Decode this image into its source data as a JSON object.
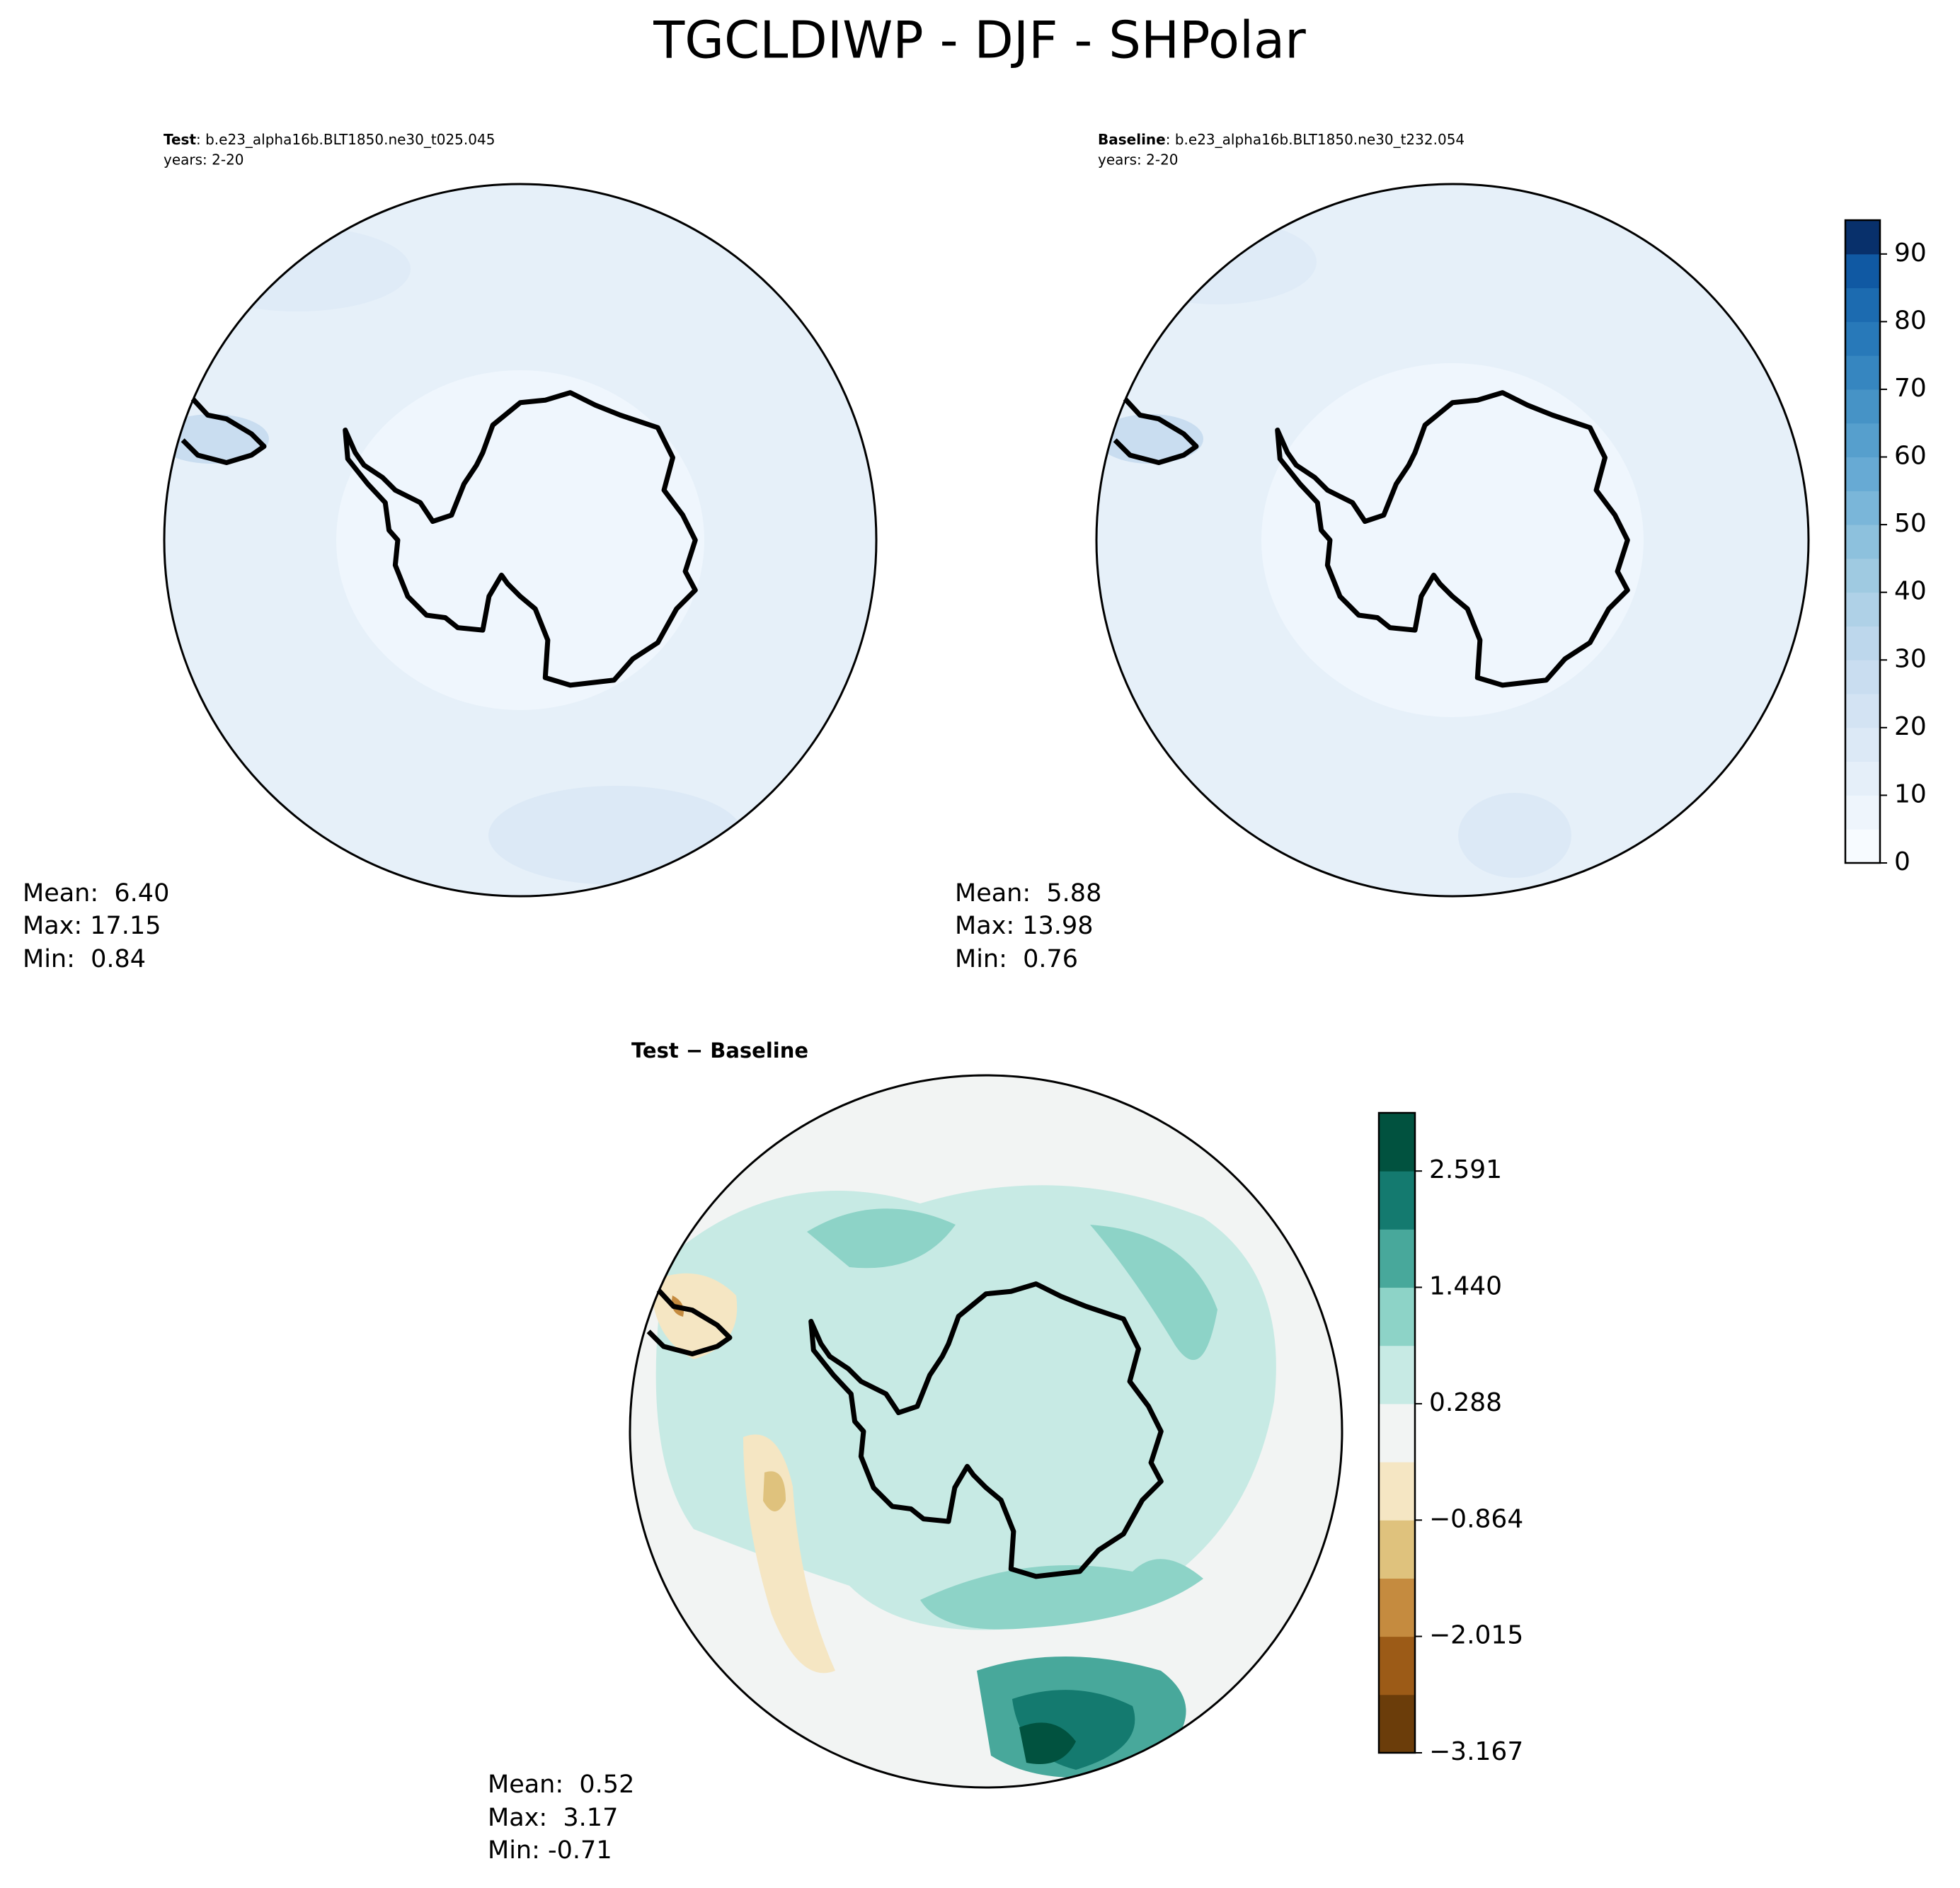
{
  "title": "TGCLDIWP - DJF - SHPolar",
  "panels": [
    {
      "label": "Test",
      "case": ": b.e23_alpha16b.BLT1850.ne30_t025.045",
      "years": "years: 2-20",
      "stats": [
        "Mean:  6.40",
        "Max: 17.15",
        "Min:  0.84"
      ]
    },
    {
      "label": "Baseline",
      "case": ": b.e23_alpha16b.BLT1850.ne30_t232.054",
      "years": "years: 2-20",
      "stats": [
        "Mean:  5.88",
        "Max: 13.98",
        "Min:  0.76"
      ]
    },
    {
      "label": "Test − Baseline",
      "stats": [
        "Mean:  0.52",
        "Max:  3.17",
        "Min: -0.71"
      ]
    }
  ],
  "colorbars": [
    {
      "lim": [
        0,
        95
      ],
      "ticks": [
        0,
        10,
        20,
        30,
        40,
        50,
        60,
        70,
        80,
        90
      ],
      "colors": [
        "#f7fbff",
        "#eef5fc",
        "#e5eff9",
        "#dce9f6",
        "#d3e3f3",
        "#c9ddf0",
        "#bdd7ec",
        "#afd1e7",
        "#9fcae1",
        "#8dc1dd",
        "#7ab6d9",
        "#67aad4",
        "#569fcd",
        "#4693c6",
        "#3686c0",
        "#2879b9",
        "#1c6bb0",
        "#1059a3",
        "#08306b"
      ]
    },
    {
      "lim": [
        -3.167,
        3.167
      ],
      "ticks": [
        {
          "value": -3.167,
          "label": "−3.167"
        },
        {
          "value": -2.015,
          "label": "−2.015"
        },
        {
          "value": -0.864,
          "label": "−0.864"
        },
        0.288,
        {
          "value": 1.44,
          "label": "1.440"
        },
        2.591
      ],
      "colors": [
        "#6b3d0a",
        "#9c5b17",
        "#c58b3f",
        "#dfc27d",
        "#f5e6c3",
        "#f2f4f3",
        "#c7eae4",
        "#8dd3c7",
        "#48a89b",
        "#147a6f",
        "#01523f"
      ]
    }
  ]
}
